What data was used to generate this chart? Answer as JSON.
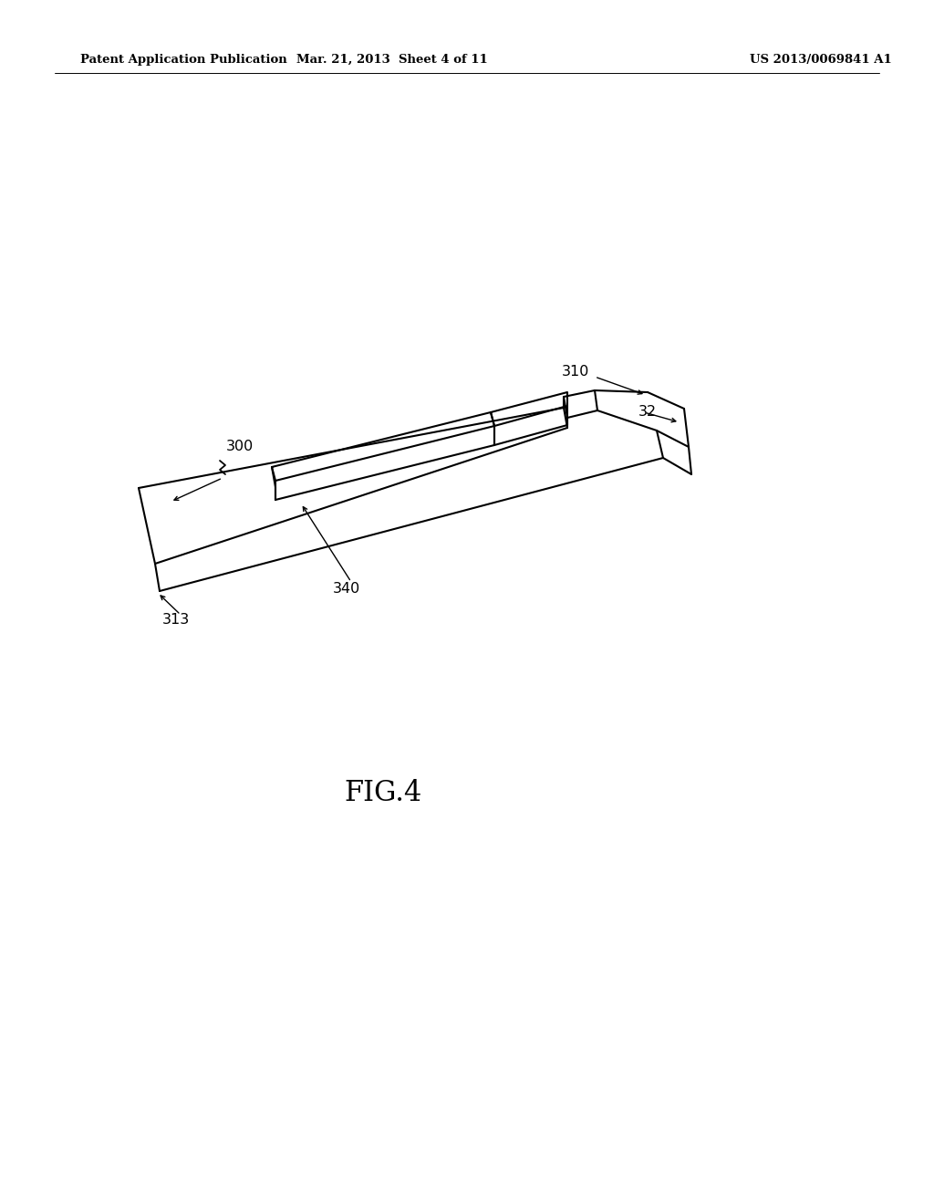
{
  "background_color": "#ffffff",
  "line_color": "#000000",
  "line_width": 1.5,
  "header_left": "Patent Application Publication",
  "header_mid": "Mar. 21, 2013  Sheet 4 of 11",
  "header_right": "US 2013/0069841 A1",
  "fig_label": "FIG.4",
  "label_fontsize": 11.5,
  "fig_label_fontsize": 22,
  "header_fontsize": 9.5
}
